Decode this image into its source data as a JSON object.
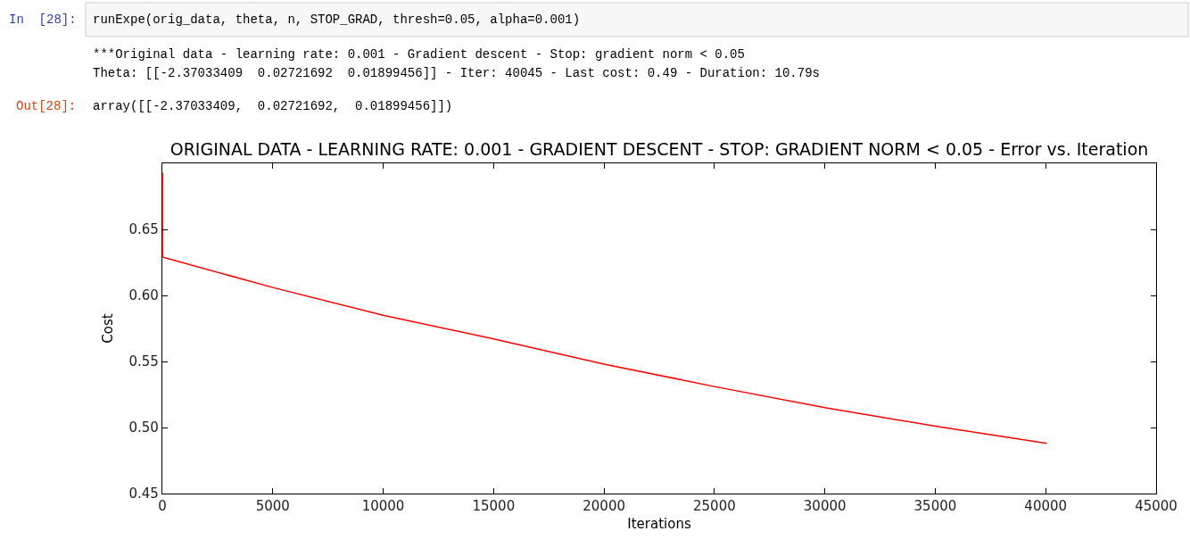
{
  "chart_data": {
    "type": "line",
    "title": "ORIGINAL DATA - LEARNING RATE: 0.001 - GRADIENT DESCENT - STOP: GRADIENT NORM < 0.05 - Error vs. Iteration",
    "xlabel": "Iterations",
    "ylabel": "Cost",
    "annotations": [
      "In  [28]:",
      "runExpe(orig_data, theta, n, STOP_GRAD, thresh=0.05, alpha=0.001)",
      "***Original data - learning rate: 0.001 - Gradient descent - Stop: gradient norm < 0.05",
      "Theta: [[-2.37033409  0.02721692  0.01899456]] - Iter: 40045 - Last cost: 0.49 - Duration: 10.79s",
      "Out[28]:",
      "array([[-2.37033409,  0.02721692,  0.01899456]])"
    ],
    "x": [
      0,
      1,
      5000,
      10000,
      15000,
      20000,
      25000,
      30000,
      35000,
      40045
    ],
    "series": [
      {
        "color": "#ff0000",
        "values": [
          0.693,
          0.629,
          0.606,
          0.585,
          0.567,
          0.548,
          0.531,
          0.515,
          0.501,
          0.488
        ]
      }
    ],
    "xlim": [
      0,
      45000
    ],
    "xticks": [
      0,
      5000,
      10000,
      15000,
      20000,
      25000,
      30000,
      35000,
      40000,
      45000
    ],
    "ylim": [
      0.45,
      0.7
    ],
    "yticks": [
      0.45,
      {
        "value": 0.5,
        "label": "0.50"
      },
      0.55,
      {
        "value": 0.6,
        "label": "0.60"
      },
      0.65
    ],
    "marker": "none",
    "line_style": "solid"
  }
}
